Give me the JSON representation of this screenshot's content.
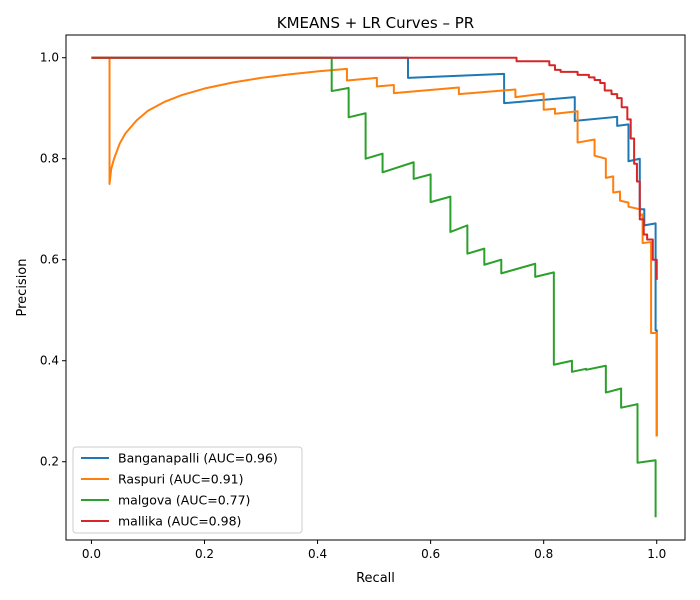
{
  "chart_data": {
    "type": "line",
    "title": "KMEANS + LR Curves – PR",
    "xlabel": "Recall",
    "ylabel": "Precision",
    "xlim": [
      -0.045,
      1.05
    ],
    "ylim": [
      0.045,
      1.045
    ],
    "xticks": [
      0.0,
      0.2,
      0.4,
      0.6,
      0.8,
      1.0
    ],
    "xtick_labels": [
      "0.0",
      "0.2",
      "0.4",
      "0.6",
      "0.8",
      "1.0"
    ],
    "yticks": [
      0.2,
      0.4,
      0.6,
      0.8,
      1.0
    ],
    "ytick_labels": [
      "0.2",
      "0.4",
      "0.6",
      "0.8",
      "1.0"
    ],
    "grid": false,
    "legend_position": "lower-left",
    "series": [
      {
        "name": "Banganapalli (AUC=0.96)",
        "color": "#1f77b4",
        "points": [
          [
            0.0,
            1.0
          ],
          [
            0.56,
            1.0
          ],
          [
            0.56,
            0.96
          ],
          [
            0.73,
            0.968
          ],
          [
            0.73,
            0.91
          ],
          [
            0.855,
            0.922
          ],
          [
            0.855,
            0.875
          ],
          [
            0.93,
            0.883
          ],
          [
            0.93,
            0.865
          ],
          [
            0.95,
            0.868
          ],
          [
            0.95,
            0.795
          ],
          [
            0.97,
            0.8
          ],
          [
            0.97,
            0.7
          ],
          [
            0.978,
            0.7
          ],
          [
            0.978,
            0.668
          ],
          [
            0.998,
            0.672
          ],
          [
            0.998,
            0.46
          ],
          [
            1.0,
            0.46
          ],
          [
            1.0,
            0.25
          ]
        ]
      },
      {
        "name": "Raspuri (AUC=0.91)",
        "color": "#ff7f0e",
        "points": [
          [
            0.0,
            1.0
          ],
          [
            0.032,
            1.0
          ],
          [
            0.032,
            0.75
          ],
          [
            0.035,
            0.78
          ],
          [
            0.04,
            0.8
          ],
          [
            0.05,
            0.83
          ],
          [
            0.06,
            0.85
          ],
          [
            0.08,
            0.876
          ],
          [
            0.1,
            0.895
          ],
          [
            0.13,
            0.913
          ],
          [
            0.16,
            0.926
          ],
          [
            0.2,
            0.939
          ],
          [
            0.25,
            0.951
          ],
          [
            0.3,
            0.96
          ],
          [
            0.35,
            0.967
          ],
          [
            0.4,
            0.973
          ],
          [
            0.452,
            0.978
          ],
          [
            0.452,
            0.955
          ],
          [
            0.505,
            0.96
          ],
          [
            0.505,
            0.943
          ],
          [
            0.535,
            0.946
          ],
          [
            0.535,
            0.93
          ],
          [
            0.65,
            0.941
          ],
          [
            0.65,
            0.928
          ],
          [
            0.75,
            0.937
          ],
          [
            0.75,
            0.922
          ],
          [
            0.8,
            0.929
          ],
          [
            0.8,
            0.897
          ],
          [
            0.82,
            0.899
          ],
          [
            0.82,
            0.889
          ],
          [
            0.86,
            0.894
          ],
          [
            0.86,
            0.832
          ],
          [
            0.89,
            0.838
          ],
          [
            0.89,
            0.806
          ],
          [
            0.91,
            0.8
          ],
          [
            0.91,
            0.762
          ],
          [
            0.923,
            0.765
          ],
          [
            0.923,
            0.733
          ],
          [
            0.935,
            0.735
          ],
          [
            0.935,
            0.717
          ],
          [
            0.95,
            0.713
          ],
          [
            0.95,
            0.705
          ],
          [
            0.97,
            0.7
          ],
          [
            0.97,
            0.688
          ],
          [
            0.975,
            0.69
          ],
          [
            0.975,
            0.633
          ],
          [
            0.99,
            0.635
          ],
          [
            0.99,
            0.455
          ],
          [
            1.0,
            0.455
          ],
          [
            1.0,
            0.25
          ]
        ]
      },
      {
        "name": "malgova (AUC=0.77)",
        "color": "#2ca02c",
        "points": [
          [
            0.0,
            1.0
          ],
          [
            0.425,
            1.0
          ],
          [
            0.425,
            0.934
          ],
          [
            0.455,
            0.94
          ],
          [
            0.455,
            0.882
          ],
          [
            0.485,
            0.89
          ],
          [
            0.485,
            0.8
          ],
          [
            0.515,
            0.81
          ],
          [
            0.515,
            0.773
          ],
          [
            0.57,
            0.793
          ],
          [
            0.57,
            0.76
          ],
          [
            0.6,
            0.769
          ],
          [
            0.6,
            0.714
          ],
          [
            0.635,
            0.725
          ],
          [
            0.635,
            0.655
          ],
          [
            0.665,
            0.668
          ],
          [
            0.665,
            0.612
          ],
          [
            0.695,
            0.622
          ],
          [
            0.695,
            0.59
          ],
          [
            0.725,
            0.6
          ],
          [
            0.725,
            0.573
          ],
          [
            0.785,
            0.592
          ],
          [
            0.785,
            0.566
          ],
          [
            0.818,
            0.575
          ],
          [
            0.818,
            0.392
          ],
          [
            0.85,
            0.4
          ],
          [
            0.85,
            0.378
          ],
          [
            0.875,
            0.384
          ],
          [
            0.875,
            0.382
          ],
          [
            0.91,
            0.39
          ],
          [
            0.91,
            0.337
          ],
          [
            0.937,
            0.345
          ],
          [
            0.937,
            0.307
          ],
          [
            0.966,
            0.314
          ],
          [
            0.966,
            0.198
          ],
          [
            0.998,
            0.203
          ],
          [
            0.998,
            0.09
          ]
        ]
      },
      {
        "name": "mallika (AUC=0.98)",
        "color": "#d62728",
        "points": [
          [
            0.0,
            1.0
          ],
          [
            0.752,
            1.0
          ],
          [
            0.752,
            0.993
          ],
          [
            0.81,
            0.993
          ],
          [
            0.81,
            0.985
          ],
          [
            0.82,
            0.985
          ],
          [
            0.82,
            0.976
          ],
          [
            0.83,
            0.976
          ],
          [
            0.83,
            0.972
          ],
          [
            0.86,
            0.972
          ],
          [
            0.86,
            0.966
          ],
          [
            0.88,
            0.966
          ],
          [
            0.88,
            0.961
          ],
          [
            0.89,
            0.961
          ],
          [
            0.89,
            0.956
          ],
          [
            0.9,
            0.956
          ],
          [
            0.9,
            0.95
          ],
          [
            0.908,
            0.95
          ],
          [
            0.908,
            0.935
          ],
          [
            0.92,
            0.935
          ],
          [
            0.92,
            0.928
          ],
          [
            0.93,
            0.928
          ],
          [
            0.93,
            0.92
          ],
          [
            0.938,
            0.92
          ],
          [
            0.938,
            0.902
          ],
          [
            0.948,
            0.902
          ],
          [
            0.948,
            0.878
          ],
          [
            0.954,
            0.878
          ],
          [
            0.954,
            0.84
          ],
          [
            0.96,
            0.84
          ],
          [
            0.96,
            0.79
          ],
          [
            0.965,
            0.79
          ],
          [
            0.965,
            0.755
          ],
          [
            0.97,
            0.755
          ],
          [
            0.97,
            0.68
          ],
          [
            0.977,
            0.68
          ],
          [
            0.977,
            0.65
          ],
          [
            0.983,
            0.65
          ],
          [
            0.983,
            0.64
          ],
          [
            0.993,
            0.64
          ],
          [
            0.993,
            0.6
          ],
          [
            1.0,
            0.6
          ],
          [
            1.0,
            0.56
          ]
        ]
      }
    ]
  }
}
